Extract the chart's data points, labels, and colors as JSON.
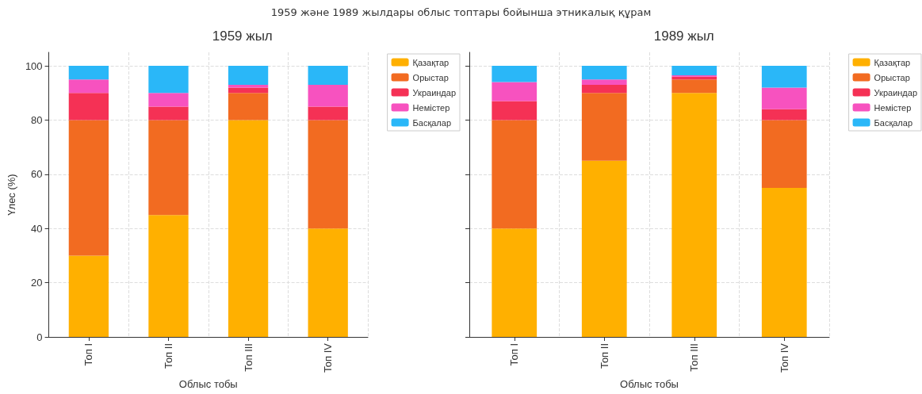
{
  "chart_data": [
    {
      "type": "bar",
      "title": "1959 жыл",
      "xlabel": "Облыс тобы",
      "ylabel": "Үлес (%)",
      "annotations": [
        "1959 және 1989 жылдары облыс топтары бойынша этникалық құрам"
      ],
      "categories": [
        "Топ I",
        "Топ II",
        "Топ III",
        "Топ IV"
      ],
      "stacked": true,
      "ylim": [
        0,
        105
      ],
      "yticks": [
        0,
        20,
        40,
        60,
        80,
        100
      ],
      "grid": true,
      "legend": "right",
      "series": [
        {
          "name": "Қазақтар",
          "color": "#ffb000",
          "values": [
            30,
            45,
            80,
            40
          ]
        },
        {
          "name": "Орыстар",
          "color": "#f26b21",
          "values": [
            50,
            35,
            10,
            40
          ]
        },
        {
          "name": "Украиндар",
          "color": "#f53155",
          "values": [
            10,
            5,
            2,
            5
          ]
        },
        {
          "name": "Немістер",
          "color": "#f752bf",
          "values": [
            5,
            5,
            1,
            8
          ]
        },
        {
          "name": "Басқалар",
          "color": "#2ab7f8",
          "values": [
            5,
            10,
            7,
            7
          ]
        }
      ]
    },
    {
      "type": "bar",
      "title": "1989 жыл",
      "xlabel": "Облыс тобы",
      "categories": [
        "Топ I",
        "Топ II",
        "Топ III",
        "Топ IV"
      ],
      "stacked": true,
      "ylim": [
        0,
        105
      ],
      "yticks": [
        0,
        20,
        40,
        60,
        80,
        100
      ],
      "grid": true,
      "legend": "right",
      "tick_labels": "x",
      "series": [
        {
          "name": "Қазақтар",
          "color": "#ffb000",
          "values": [
            40,
            65,
            90,
            55
          ]
        },
        {
          "name": "Орыстар",
          "color": "#f26b21",
          "values": [
            40,
            25,
            5,
            25
          ]
        },
        {
          "name": "Украиндар",
          "color": "#f53155",
          "values": [
            7,
            3,
            1,
            4
          ]
        },
        {
          "name": "Немістер",
          "color": "#f752bf",
          "values": [
            7,
            2,
            0.5,
            8
          ]
        },
        {
          "name": "Басқалар",
          "color": "#2ab7f8",
          "values": [
            6,
            5,
            3.5,
            8
          ]
        }
      ]
    }
  ]
}
